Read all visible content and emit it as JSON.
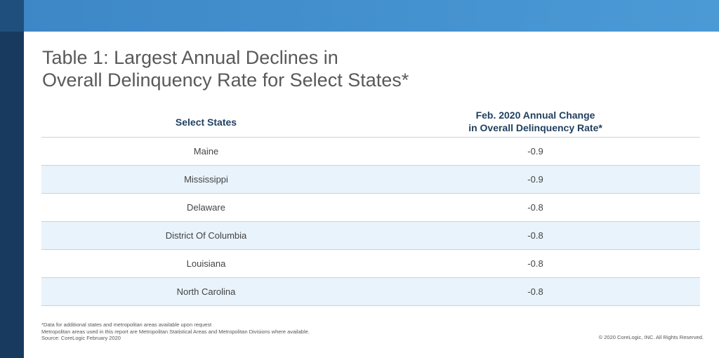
{
  "title": {
    "line1": "Table 1: Largest Annual Declines in",
    "line2": "Overall Delinquency Rate for Select States*"
  },
  "table": {
    "headers": {
      "state": "Select States",
      "change_line1": "Feb. 2020 Annual Change",
      "change_line2": "in Overall Delinquency Rate*"
    },
    "rows": [
      {
        "state": "Maine",
        "value": "-0.9"
      },
      {
        "state": "Mississippi",
        "value": "-0.9"
      },
      {
        "state": "Delaware",
        "value": "-0.8"
      },
      {
        "state": "District Of Columbia",
        "value": "-0.8"
      },
      {
        "state": "Louisiana",
        "value": "-0.8"
      },
      {
        "state": "North Carolina",
        "value": "-0.8"
      }
    ]
  },
  "footnotes": {
    "line1": "*Data for additional states and metropolitan areas available upon request",
    "line2": "Metropolitan areas used in this report are Metropolitan Statistical Areas and Metropolitan Divisions where available.",
    "line3": "Source: CoreLogic February 2020"
  },
  "copyright": "© 2020 CoreLogic, INC. All Rights Reserved.",
  "colors": {
    "sidebar": "#173a5e",
    "banner": "#4290cf",
    "header_text": "#1f3f5f",
    "alt_row": "#e8f3fb"
  }
}
